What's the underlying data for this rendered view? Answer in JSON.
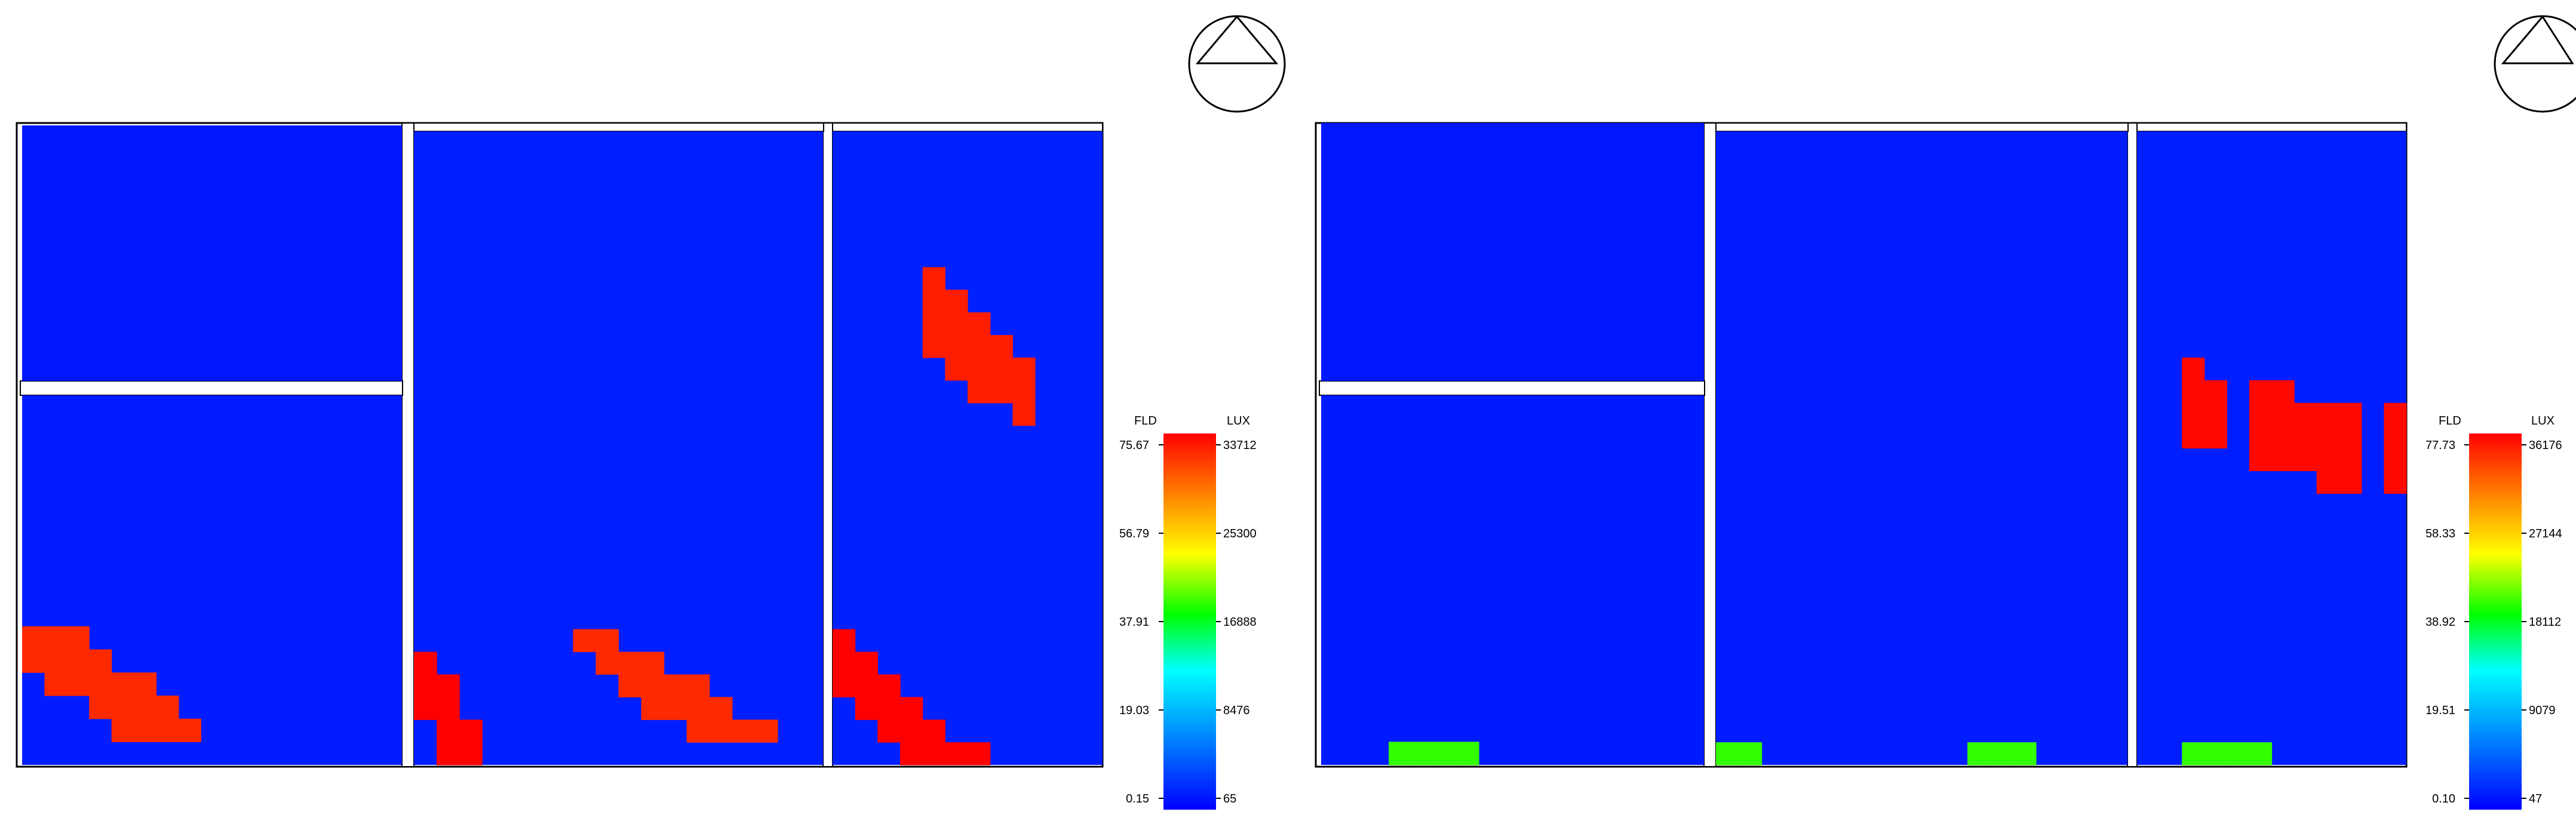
{
  "chart_data": [
    {
      "type": "heatmap",
      "title": "",
      "scale": {
        "fld_label": "FLD",
        "lux_label": "LUX",
        "fld_ticks": [
          "75.67",
          "56.79",
          "37.91",
          "19.03",
          "0.15"
        ],
        "lux_ticks": [
          "33712",
          "25300",
          "16888",
          "8476",
          "65"
        ]
      },
      "rooms": [
        {
          "name": "",
          "grid": {
            "cols": 17,
            "rows": 11
          },
          "base_lux": 1200,
          "hotspots": []
        },
        {
          "name": "",
          "grid": {
            "cols": 17,
            "rows": 16
          },
          "base_lux": 1400,
          "hotspots": [
            {
              "lux": 32000,
              "cells": [
                [
                  0,
                  10
                ],
                [
                  1,
                  10
                ],
                [
                  2,
                  10
                ],
                [
                  0,
                  11
                ],
                [
                  1,
                  11
                ],
                [
                  2,
                  11
                ],
                [
                  3,
                  11
                ],
                [
                  1,
                  12
                ],
                [
                  2,
                  12
                ],
                [
                  3,
                  12
                ],
                [
                  4,
                  12
                ],
                [
                  5,
                  12
                ],
                [
                  3,
                  13
                ],
                [
                  4,
                  13
                ],
                [
                  5,
                  13
                ],
                [
                  6,
                  13
                ],
                [
                  4,
                  14
                ],
                [
                  5,
                  14
                ],
                [
                  6,
                  14
                ],
                [
                  7,
                  14
                ]
              ]
            }
          ]
        },
        {
          "name": "",
          "grid": {
            "cols": 18,
            "rows": 28
          },
          "base_lux": 1500,
          "hotspots": [
            {
              "lux": 33700,
              "cells": [
                [
                  0,
                  23
                ],
                [
                  0,
                  24
                ],
                [
                  1,
                  24
                ],
                [
                  0,
                  25
                ],
                [
                  1,
                  25
                ],
                [
                  1,
                  26
                ],
                [
                  2,
                  26
                ],
                [
                  1,
                  27
                ],
                [
                  2,
                  27
                ]
              ]
            },
            {
              "lux": 32000,
              "cells": [
                [
                  7,
                  22
                ],
                [
                  8,
                  22
                ],
                [
                  8,
                  23
                ],
                [
                  9,
                  23
                ],
                [
                  10,
                  23
                ],
                [
                  9,
                  24
                ],
                [
                  10,
                  24
                ],
                [
                  11,
                  24
                ],
                [
                  12,
                  24
                ],
                [
                  10,
                  25
                ],
                [
                  11,
                  25
                ],
                [
                  12,
                  25
                ],
                [
                  13,
                  25
                ],
                [
                  12,
                  26
                ],
                [
                  13,
                  26
                ],
                [
                  14,
                  26
                ],
                [
                  15,
                  26
                ]
              ]
            }
          ]
        },
        {
          "name": "",
          "grid": {
            "cols": 12,
            "rows": 28
          },
          "base_lux": 1600,
          "hotspots": [
            {
              "lux": 32500,
              "cells": [
                [
                  4,
                  6
                ],
                [
                  4,
                  7
                ],
                [
                  5,
                  7
                ],
                [
                  4,
                  8
                ],
                [
                  5,
                  8
                ],
                [
                  6,
                  8
                ],
                [
                  4,
                  9
                ],
                [
                  5,
                  9
                ],
                [
                  6,
                  9
                ],
                [
                  7,
                  9
                ],
                [
                  5,
                  10
                ],
                [
                  6,
                  10
                ],
                [
                  7,
                  10
                ],
                [
                  8,
                  10
                ],
                [
                  6,
                  11
                ],
                [
                  7,
                  11
                ],
                [
                  8,
                  11
                ],
                [
                  8,
                  12
                ]
              ]
            },
            {
              "lux": 33700,
              "cells": [
                [
                  0,
                  22
                ],
                [
                  0,
                  23
                ],
                [
                  1,
                  23
                ],
                [
                  0,
                  24
                ],
                [
                  1,
                  24
                ],
                [
                  2,
                  24
                ],
                [
                  1,
                  25
                ],
                [
                  2,
                  25
                ],
                [
                  3,
                  25
                ],
                [
                  2,
                  26
                ],
                [
                  3,
                  26
                ],
                [
                  4,
                  26
                ],
                [
                  3,
                  27
                ],
                [
                  4,
                  27
                ],
                [
                  5,
                  27
                ],
                [
                  6,
                  27
                ]
              ]
            }
          ]
        }
      ]
    },
    {
      "type": "heatmap",
      "title": "",
      "scale": {
        "fld_label": "FLD",
        "lux_label": "LUX",
        "fld_ticks": [
          "77.73",
          "58.33",
          "38.92",
          "19.51",
          "0.10"
        ],
        "lux_ticks": [
          "36176",
          "27144",
          "18112",
          "9079",
          "47"
        ]
      },
      "rooms": [
        {
          "name": "",
          "grid": {
            "cols": 17,
            "rows": 11
          },
          "base_lux": 1200,
          "hotspots": []
        },
        {
          "name": "",
          "grid": {
            "cols": 17,
            "rows": 16
          },
          "base_lux": 1400,
          "hotspots": [
            {
              "lux": 20000,
              "cells": [
                [
                  3,
                  15
                ],
                [
                  4,
                  15
                ],
                [
                  5,
                  15
                ],
                [
                  6,
                  15
                ]
              ]
            }
          ]
        },
        {
          "name": "",
          "grid": {
            "cols": 18,
            "rows": 28
          },
          "base_lux": 1500,
          "hotspots": [
            {
              "lux": 20000,
              "cells": [
                [
                  0,
                  27
                ],
                [
                  1,
                  27
                ],
                [
                  11,
                  27
                ],
                [
                  12,
                  27
                ],
                [
                  13,
                  27
                ]
              ]
            }
          ]
        },
        {
          "name": "",
          "grid": {
            "cols": 12,
            "rows": 28
          },
          "base_lux": 1600,
          "hotspots": [
            {
              "lux": 35800,
              "cells": [
                [
                  2,
                  10
                ],
                [
                  2,
                  11
                ],
                [
                  3,
                  11
                ],
                [
                  2,
                  12
                ],
                [
                  3,
                  12
                ],
                [
                  2,
                  13
                ],
                [
                  3,
                  13
                ],
                [
                  5,
                  11
                ],
                [
                  6,
                  11
                ],
                [
                  5,
                  12
                ],
                [
                  6,
                  12
                ],
                [
                  7,
                  12
                ],
                [
                  8,
                  12
                ],
                [
                  9,
                  12
                ],
                [
                  5,
                  13
                ],
                [
                  6,
                  13
                ],
                [
                  7,
                  13
                ],
                [
                  8,
                  13
                ],
                [
                  9,
                  13
                ],
                [
                  5,
                  14
                ],
                [
                  6,
                  14
                ],
                [
                  7,
                  14
                ],
                [
                  8,
                  14
                ],
                [
                  9,
                  14
                ],
                [
                  8,
                  15
                ],
                [
                  9,
                  15
                ],
                [
                  11,
                  12
                ],
                [
                  11,
                  13
                ],
                [
                  11,
                  14
                ],
                [
                  11,
                  15
                ]
              ]
            },
            {
              "lux": 20000,
              "cells": [
                [
                  2,
                  27
                ],
                [
                  3,
                  27
                ],
                [
                  4,
                  27
                ],
                [
                  5,
                  27
                ]
              ]
            }
          ]
        }
      ]
    }
  ]
}
